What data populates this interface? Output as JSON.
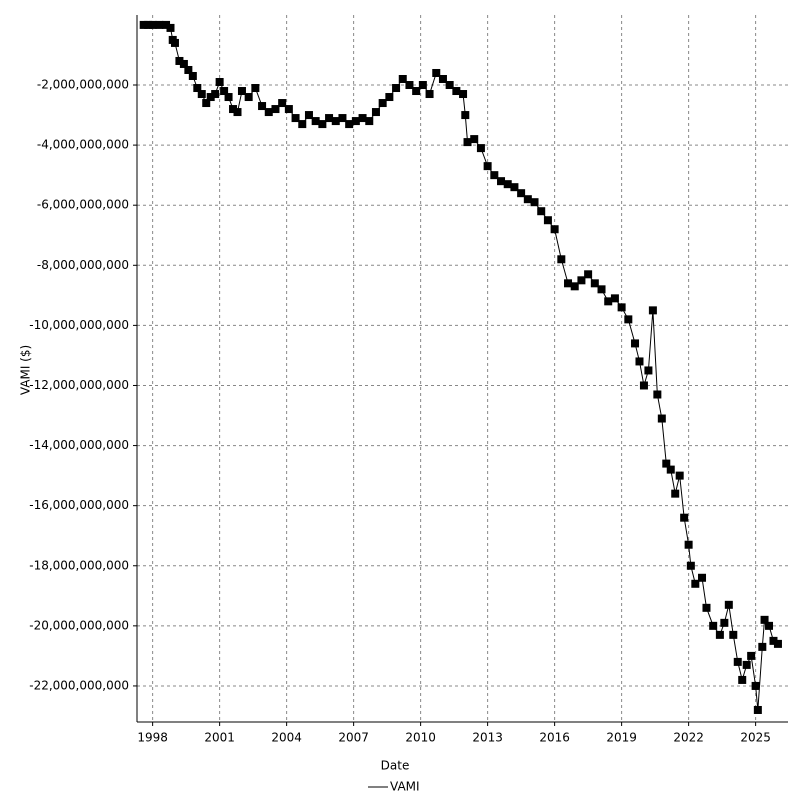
{
  "chart_data": {
    "type": "line",
    "x_label": "Date",
    "y_label": "VAMI ($)",
    "xlim": [
      1997.3,
      2026.45
    ],
    "ylim": [
      -23200000000,
      330000000
    ],
    "xticks": [
      1998,
      2001,
      2004,
      2007,
      2010,
      2013,
      2016,
      2019,
      2022,
      2025
    ],
    "yticks": [
      {
        "value": -2000000000,
        "label": "-2,000,000,000"
      },
      {
        "value": -4000000000,
        "label": "-4,000,000,000"
      },
      {
        "value": -6000000000,
        "label": "-6,000,000,000"
      },
      {
        "value": -8000000000,
        "label": "-8,000,000,000"
      },
      {
        "value": -10000000000,
        "label": "-10,000,000,000"
      },
      {
        "value": -12000000000,
        "label": "-12,000,000,000"
      },
      {
        "value": -14000000000,
        "label": "-14,000,000,000"
      },
      {
        "value": -16000000000,
        "label": "-16,000,000,000"
      },
      {
        "value": -18000000000,
        "label": "-18,000,000,000"
      },
      {
        "value": -20000000000,
        "label": "-20,000,000,000"
      },
      {
        "value": -22000000000,
        "label": "-22,000,000,000"
      }
    ],
    "grid": true,
    "x": [
      1997.6,
      1997.8,
      1998.0,
      1998.3,
      1998.6,
      1998.8,
      1998.9,
      1999.0,
      1999.2,
      1999.4,
      1999.6,
      1999.8,
      2000.0,
      2000.2,
      2000.4,
      2000.6,
      2000.8,
      2001.0,
      2001.2,
      2001.4,
      2001.6,
      2001.8,
      2002.0,
      2002.3,
      2002.6,
      2002.9,
      2003.2,
      2003.5,
      2003.8,
      2004.1,
      2004.4,
      2004.7,
      2005.0,
      2005.3,
      2005.6,
      2005.9,
      2006.2,
      2006.5,
      2006.8,
      2007.1,
      2007.4,
      2007.7,
      2008.0,
      2008.3,
      2008.6,
      2008.9,
      2009.2,
      2009.5,
      2009.8,
      2010.1,
      2010.4,
      2010.7,
      2011.0,
      2011.3,
      2011.6,
      2011.9,
      2012.0,
      2012.1,
      2012.4,
      2012.7,
      2013.0,
      2013.3,
      2013.6,
      2013.9,
      2014.2,
      2014.5,
      2014.8,
      2015.1,
      2015.4,
      2015.7,
      2016.0,
      2016.3,
      2016.6,
      2016.9,
      2017.2,
      2017.5,
      2017.8,
      2018.1,
      2018.4,
      2018.7,
      2019.0,
      2019.3,
      2019.6,
      2019.8,
      2020.0,
      2020.2,
      2020.4,
      2020.6,
      2020.8,
      2021.0,
      2021.2,
      2021.4,
      2021.6,
      2021.8,
      2022.0,
      2022.1,
      2022.3,
      2022.6,
      2022.8,
      2023.1,
      2023.4,
      2023.6,
      2023.8,
      2024.0,
      2024.2,
      2024.4,
      2024.6,
      2024.8,
      2025.0,
      2025.1,
      2025.3,
      2025.4,
      2025.6,
      2025.8,
      2026.0
    ],
    "series": [
      {
        "name": "VAMI",
        "color": "#000000",
        "values": [
          0,
          0,
          0,
          0,
          0,
          -100000000,
          -500000000,
          -600000000,
          -1200000000,
          -1300000000,
          -1500000000,
          -1700000000,
          -2100000000,
          -2300000000,
          -2600000000,
          -2400000000,
          -2300000000,
          -1900000000,
          -2200000000,
          -2400000000,
          -2800000000,
          -2900000000,
          -2200000000,
          -2400000000,
          -2100000000,
          -2700000000,
          -2900000000,
          -2800000000,
          -2600000000,
          -2800000000,
          -3100000000,
          -3300000000,
          -3000000000,
          -3200000000,
          -3300000000,
          -3100000000,
          -3200000000,
          -3100000000,
          -3300000000,
          -3200000000,
          -3100000000,
          -3200000000,
          -2900000000,
          -2600000000,
          -2400000000,
          -2100000000,
          -1800000000,
          -2000000000,
          -2200000000,
          -2000000000,
          -2300000000,
          -1600000000,
          -1800000000,
          -2000000000,
          -2200000000,
          -2300000000,
          -3000000000,
          -3900000000,
          -3800000000,
          -4100000000,
          -4700000000,
          -5000000000,
          -5200000000,
          -5300000000,
          -5400000000,
          -5600000000,
          -5800000000,
          -5900000000,
          -6200000000,
          -6500000000,
          -6800000000,
          -7800000000,
          -8600000000,
          -8700000000,
          -8500000000,
          -8300000000,
          -8600000000,
          -8800000000,
          -9200000000,
          -9100000000,
          -9400000000,
          -9800000000,
          -10600000000,
          -11200000000,
          -12000000000,
          -11500000000,
          -9500000000,
          -12300000000,
          -13100000000,
          -14600000000,
          -14800000000,
          -15600000000,
          -15000000000,
          -16400000000,
          -17300000000,
          -18000000000,
          -18600000000,
          -18400000000,
          -19400000000,
          -20000000000,
          -20300000000,
          -19900000000,
          -19300000000,
          -20300000000,
          -21200000000,
          -21800000000,
          -21300000000,
          -21000000000,
          -22000000000,
          -22800000000,
          -20700000000,
          -19800000000,
          -20000000000,
          -20500000000,
          -20600000000
        ]
      }
    ]
  }
}
